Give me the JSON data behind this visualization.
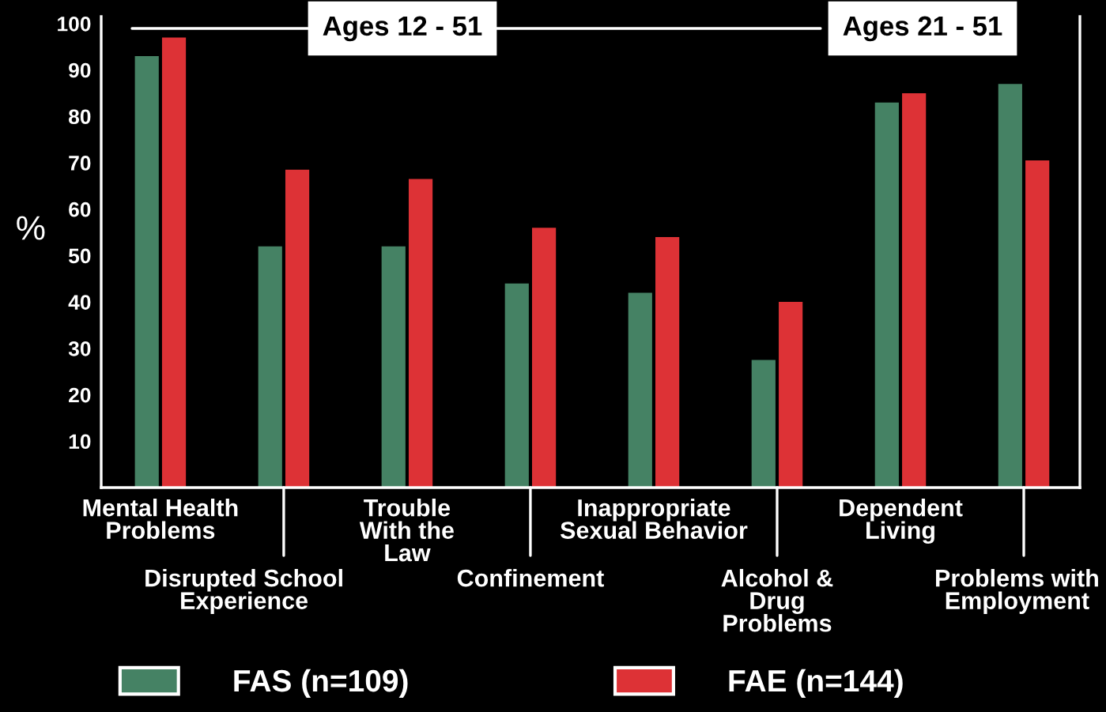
{
  "chart_data": {
    "type": "bar",
    "ylabel": "%",
    "categories": [
      "Mental Health\nProblems",
      "Disrupted School\nExperience",
      "Trouble\nWith the\nLaw",
      "Confinement",
      "Inappropriate\nSexual Behavior",
      "Alcohol &\nDrug\nProblems",
      "Dependent\nLiving",
      "Problems with\nEmployment"
    ],
    "series": [
      {
        "name": "FAS (n=109)",
        "color": "#458264",
        "values": [
          93,
          52,
          52,
          44,
          42,
          27.5,
          83,
          87
        ]
      },
      {
        "name": "FAE (n=144)",
        "color": "#dd3236",
        "values": [
          97,
          68.5,
          66.5,
          56,
          54,
          40,
          85,
          70.5
        ]
      }
    ],
    "ylim": [
      0,
      101.5
    ],
    "yticks": [
      10,
      20,
      30,
      40,
      50,
      60,
      70,
      80,
      90,
      100
    ],
    "annotations": [
      "Ages 12 - 51",
      "Ages 21 - 51"
    ],
    "legend": "bottom"
  }
}
